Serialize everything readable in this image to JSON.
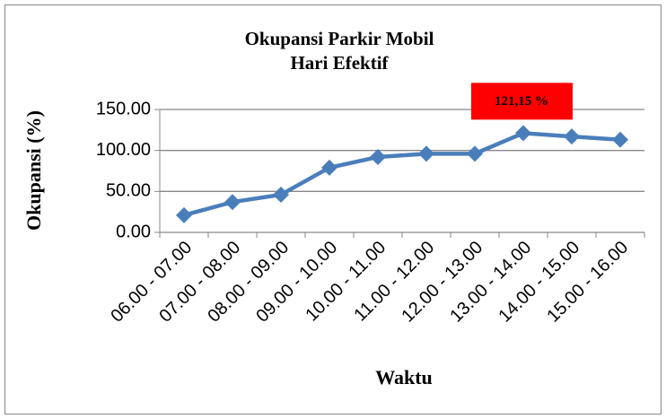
{
  "chart_data": {
    "type": "line",
    "title": "Okupansi Parkir Mobil",
    "subtitle": "Hari Efektif",
    "x_label": "Waktu",
    "y_label": "Okupansi (%)",
    "categories": [
      "06.00 - 07.00",
      "07.00 - 08.00",
      "08.00 - 09.00",
      "09.00 - 10.00",
      "10.00 - 11.00",
      "11.00 - 12.00",
      "12.00 - 13.00",
      "13.00 - 14.00",
      "14.00 - 15.00",
      "15.00 - 16.00"
    ],
    "values": [
      21,
      37,
      46,
      79,
      92,
      96,
      96,
      121.15,
      117,
      113
    ],
    "value_labels": [
      null,
      null,
      null,
      null,
      null,
      null,
      null,
      "121,15 %",
      null,
      null
    ],
    "color": "#4a7ebb",
    "label_box_color": "#ff0000",
    "ylim": [
      0,
      150
    ],
    "yticks": [
      {
        "value": 0,
        "label": "0.00"
      },
      {
        "value": 50,
        "label": "50.00"
      },
      {
        "value": 100,
        "label": "100.00"
      },
      {
        "value": 150,
        "label": "150.00"
      }
    ],
    "grid": true
  }
}
